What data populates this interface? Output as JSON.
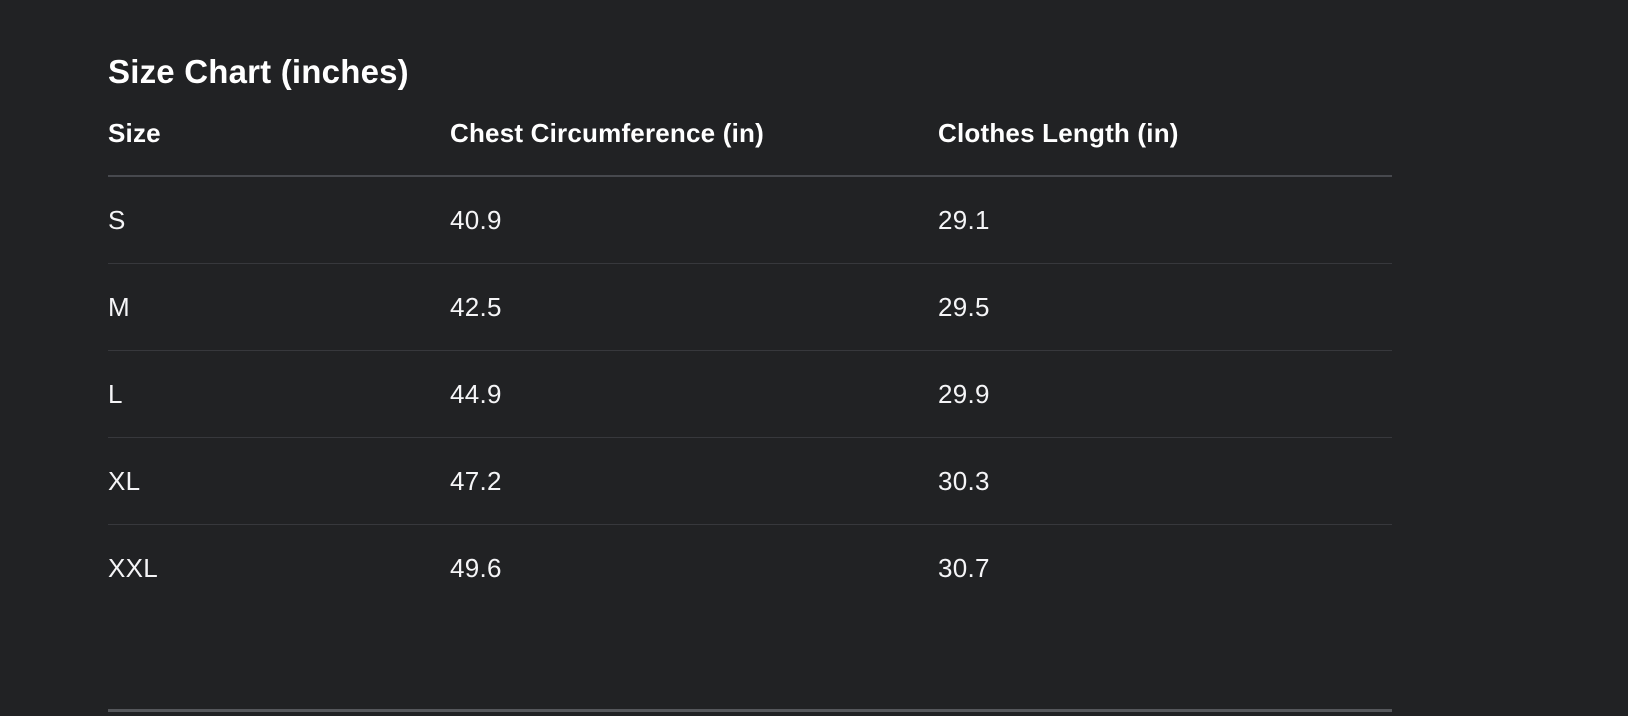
{
  "theme": {
    "background": "#212224",
    "text_primary": "#ffffff",
    "text_cell": "#f5f5f7",
    "row_divider": "#37383c",
    "header_divider": "#47494e",
    "section_divider": "#55575b"
  },
  "size_chart": {
    "title": "Size Chart (inches)",
    "columns": [
      {
        "label": "Size"
      },
      {
        "label": "Chest Circumference (in)"
      },
      {
        "label": "Clothes Length (in)"
      }
    ],
    "rows": [
      {
        "size": "S",
        "chest_circumference_in": "40.9",
        "clothes_length_in": "29.1"
      },
      {
        "size": "M",
        "chest_circumference_in": "42.5",
        "clothes_length_in": "29.5"
      },
      {
        "size": "L",
        "chest_circumference_in": "44.9",
        "clothes_length_in": "29.9"
      },
      {
        "size": "XL",
        "chest_circumference_in": "47.2",
        "clothes_length_in": "30.3"
      },
      {
        "size": "XXL",
        "chest_circumference_in": "49.6",
        "clothes_length_in": "30.7"
      }
    ]
  }
}
